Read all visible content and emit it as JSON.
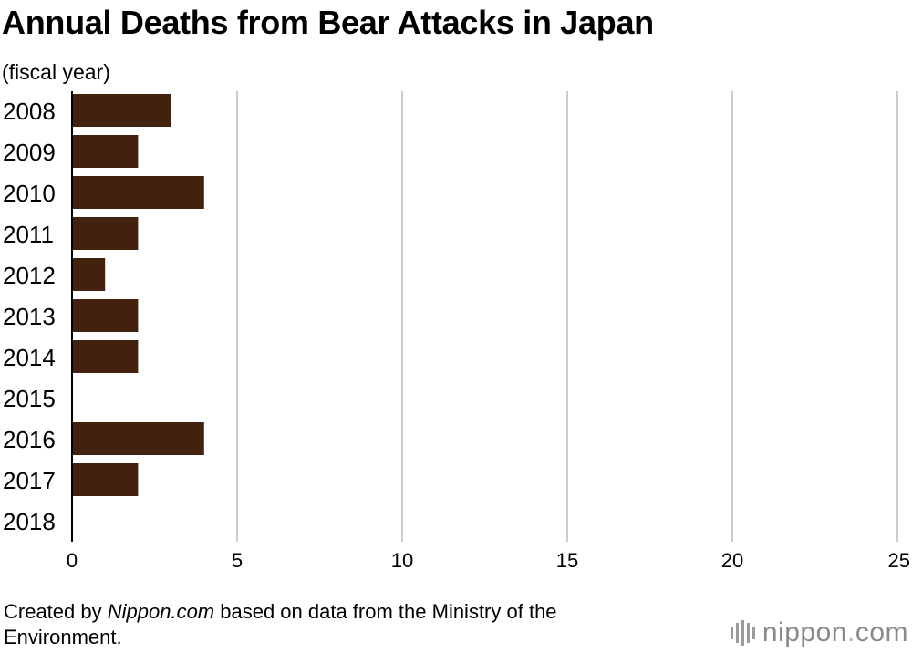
{
  "chart_data": {
    "type": "bar",
    "orientation": "horizontal",
    "title": "Annual Deaths from Bear Attacks in Japan",
    "ylabel": "(fiscal year)",
    "xlabel": "",
    "categories": [
      "2008",
      "2009",
      "2010",
      "2011",
      "2012",
      "2013",
      "2014",
      "2015",
      "2016",
      "2017",
      "2018"
    ],
    "values": [
      3,
      2,
      4,
      2,
      1,
      2,
      2,
      0,
      4,
      2,
      0
    ],
    "xlim": [
      0,
      25
    ],
    "xticks": [
      "0",
      "5",
      "10",
      "15",
      "20",
      "25"
    ],
    "grid": "vertical",
    "bar_color": "#42220e",
    "grid_color": "#cccccc"
  },
  "footer": {
    "prefix": "Created by ",
    "source": "Nippon.com",
    "suffix": " based on data from the Ministry of the Environment."
  },
  "logo": {
    "name": "nippon",
    "dot": ".",
    "tld": "com"
  }
}
